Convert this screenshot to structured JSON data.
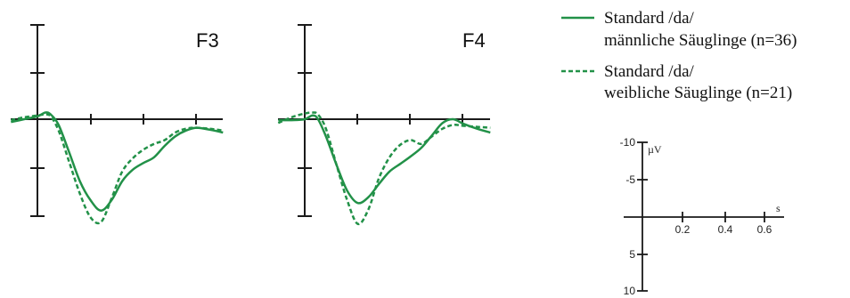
{
  "colors": {
    "curve": "#229148",
    "axis": "#1a1a1a"
  },
  "legend": {
    "solid": {
      "line1": "Standard /da/",
      "line2": "männliche Säuglinge (n=36)"
    },
    "dashed": {
      "line1": "Standard /da/",
      "line2": "weibliche Säuglinge (n=21)"
    }
  },
  "scale": {
    "y_unit": "µV",
    "x_unit": "s",
    "y_ticks": [
      "-10",
      "-5",
      "5",
      "10"
    ],
    "x_ticks": [
      "0.2",
      "0.4",
      "0.6"
    ]
  },
  "chart_data": {
    "type": "line",
    "x_unit": "s",
    "y_unit": "µV",
    "ylim": [
      -10,
      10
    ],
    "y_inverted": true,
    "series_names": [
      "Standard /da/ männliche Säuglinge (n=36)",
      "Standard /da/ weibliche Säuglinge (n=21)"
    ],
    "panels": [
      {
        "title": "F3",
        "x": [
          -0.1,
          -0.05,
          0,
          0.03,
          0.05,
          0.08,
          0.12,
          0.16,
          0.2,
          0.24,
          0.28,
          0.32,
          0.36,
          0.4,
          0.44,
          0.48,
          0.52,
          0.56,
          0.6,
          0.65,
          0.7
        ],
        "series": [
          {
            "name": "Standard /da/ männliche Säuglinge (n=36)",
            "style": "solid",
            "values": [
              0.3,
              0,
              -0.3,
              -0.7,
              -0.5,
              0.6,
              3.5,
              6.5,
              8.5,
              9.6,
              8.5,
              6.5,
              5.3,
              4.6,
              4.0,
              2.8,
              1.8,
              1.2,
              0.9,
              1.1,
              1.4
            ]
          },
          {
            "name": "Standard /da/ weibliche Säuglinge (n=21)",
            "style": "dashed",
            "values": [
              0.1,
              -0.2,
              -0.4,
              -0.5,
              -0.3,
              1.2,
              4.5,
              7.8,
              10.3,
              10.8,
              8.3,
              5.5,
              4.1,
              3.2,
              2.6,
              2.2,
              1.4,
              1.0,
              0.9,
              1.0,
              1.2
            ]
          }
        ]
      },
      {
        "title": "F4",
        "x": [
          -0.1,
          -0.05,
          0,
          0.03,
          0.05,
          0.08,
          0.12,
          0.16,
          0.2,
          0.24,
          0.28,
          0.32,
          0.36,
          0.4,
          0.44,
          0.48,
          0.52,
          0.56,
          0.6,
          0.65,
          0.7
        ],
        "series": [
          {
            "name": "Standard /da/ männliche Säuglinge (n=36)",
            "style": "solid",
            "values": [
              0.1,
              0.1,
              0,
              -0.4,
              0,
              1.8,
              4.8,
              7.5,
              8.8,
              8.2,
              6.8,
              5.5,
              4.7,
              3.9,
              3.0,
              1.7,
              0.4,
              0,
              0.5,
              1.0,
              1.4
            ]
          },
          {
            "name": "Standard /da/ weibliche Säuglinge (n=21)",
            "style": "dashed",
            "values": [
              0.4,
              -0.2,
              -0.6,
              -0.7,
              -0.5,
              1.0,
              4.8,
              8.5,
              11.0,
              9.5,
              6.2,
              4.0,
              2.7,
              2.2,
              2.6,
              1.8,
              1.0,
              0.6,
              0.7,
              0.8,
              0.9
            ]
          }
        ]
      }
    ]
  }
}
